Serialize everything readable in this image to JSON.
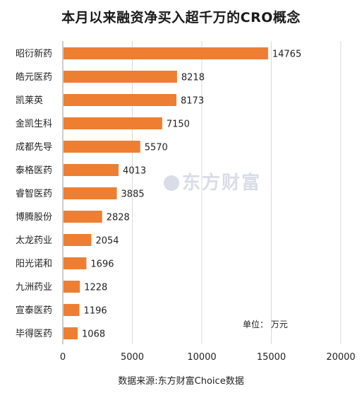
{
  "chart_data": {
    "type": "bar",
    "orientation": "horizontal",
    "title": "本月以来融资净买入超千万的CRO概念",
    "categories": [
      "昭衍新药",
      "皓元医药",
      "凯莱英",
      "金凯生科",
      "成都先导",
      "泰格医药",
      "睿智医药",
      "博腾股份",
      "太龙药业",
      "阳光诺和",
      "九洲药业",
      "宣泰医药",
      "毕得医药"
    ],
    "values": [
      14765,
      8218,
      8173,
      7150,
      5570,
      4013,
      3885,
      2828,
      2054,
      1696,
      1228,
      1196,
      1068
    ],
    "xlim": [
      0,
      20000
    ],
    "xticks": [
      0,
      5000,
      10000,
      15000,
      20000
    ],
    "grid": "vertical",
    "bar_color": "#ee7e32",
    "unit_label": "单位： 万元",
    "source": "数据来源:东方财富Choice数据",
    "watermark": "东方财富"
  }
}
